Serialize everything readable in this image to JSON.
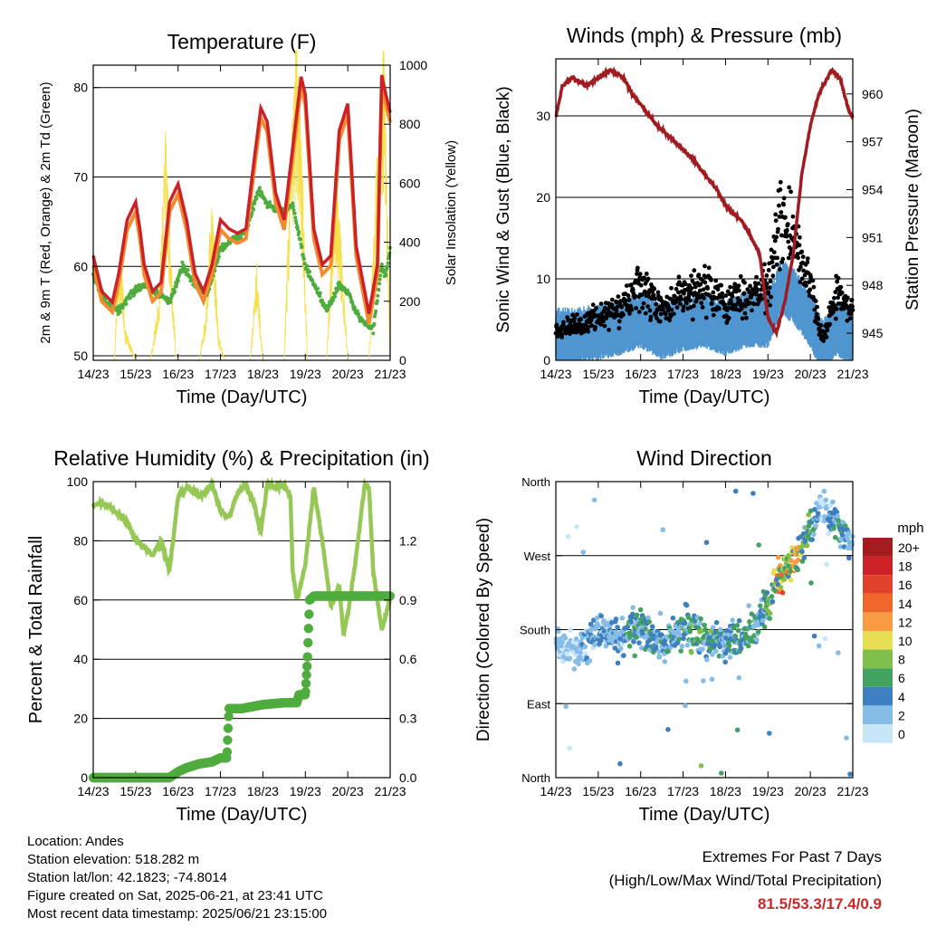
{
  "days": [
    "14/23",
    "15/23",
    "16/23",
    "17/23",
    "18/23",
    "19/23",
    "20/23",
    "21/23"
  ],
  "xlabel": "Time (Day/UTC)",
  "colors": {
    "temp_2m": "#cc2127",
    "temp_9m": "#f28b2f",
    "dewpoint": "#4fac3e",
    "solar": "#f5e14d",
    "wind": "#4f95d0",
    "gust": "#000000",
    "pressure": "#a01c20",
    "rh": "#95c854",
    "rain": "#4fac3e"
  },
  "chart_data": [
    {
      "id": "temperature",
      "type": "line",
      "title": "Temperature (F)",
      "xlabel": "Time (Day/UTC)",
      "ylabel": "2m & 9m T (Red, Orange) & 2m Td (Green)",
      "ylabel_right": "Solar Insolation (Yellow)",
      "ylim": [
        49.5,
        82.5
      ],
      "yticks": [
        50,
        60,
        70,
        80
      ],
      "ylim_right": [
        0,
        1000
      ],
      "yticks_right": [
        0,
        200,
        400,
        600,
        800,
        1000
      ],
      "series": [
        {
          "key": "temp",
          "x": [
            0,
            0.2,
            0.45,
            0.6,
            0.8,
            1.0,
            1.1,
            1.2,
            1.4,
            1.6,
            1.8,
            2.0,
            2.2,
            2.4,
            2.6,
            2.8,
            3.0,
            3.2,
            3.4,
            3.6,
            3.8,
            3.95,
            4.1,
            4.3,
            4.5,
            4.7,
            4.9,
            5.0,
            5.2,
            5.4,
            5.6,
            5.8,
            6.0,
            6.2,
            6.5,
            6.7,
            6.8,
            6.9,
            7.0
          ],
          "values": [
            61,
            57,
            55.8,
            59,
            65,
            67,
            64,
            60,
            57,
            58,
            67,
            69,
            65,
            59,
            57,
            60,
            65,
            64,
            63.5,
            64,
            72,
            77.5,
            76,
            68,
            65,
            73,
            81,
            79,
            64,
            60,
            61,
            75,
            78,
            62,
            54.5,
            60,
            81.2,
            79,
            77
          ]
        },
        {
          "key": "dew",
          "x": [
            0,
            0.3,
            0.6,
            0.9,
            1.2,
            1.5,
            1.8,
            2.1,
            2.4,
            2.7,
            3.0,
            3.3,
            3.6,
            3.9,
            4.1,
            4.4,
            4.7,
            5.0,
            5.3,
            5.5,
            5.8,
            6.0,
            6.3,
            6.6,
            6.8,
            6.9,
            7.0
          ],
          "values": [
            59,
            56,
            55,
            57,
            58,
            57,
            56,
            60,
            58,
            57,
            62,
            63,
            64,
            68.5,
            67,
            66,
            67,
            60,
            57,
            55,
            58,
            57,
            54,
            53,
            60,
            59,
            62
          ]
        },
        {
          "key": "solar",
          "x": [
            0,
            0.1,
            0.25,
            0.35,
            0.5,
            0.55,
            0.65,
            0.75,
            1,
            1.1,
            1.25,
            1.35,
            1.55,
            1.7,
            1.85,
            1.95,
            2.1,
            2.3,
            2.5,
            2.65,
            2.8,
            2.95,
            3.1,
            3.3,
            3.5,
            3.7,
            3.85,
            4.0,
            4.2,
            4.5,
            4.65,
            4.8,
            4.95,
            5.05,
            5.2,
            5.5,
            5.7,
            5.85,
            6.0,
            6.2,
            6.5,
            6.7,
            6.85,
            7.0
          ],
          "values": [
            0,
            0,
            0,
            0,
            0,
            180,
            350,
            100,
            0,
            0,
            0,
            0,
            200,
            700,
            300,
            0,
            0,
            0,
            0,
            150,
            520,
            80,
            0,
            0,
            0,
            0,
            300,
            0,
            0,
            0,
            650,
            1000,
            500,
            0,
            0,
            0,
            600,
            350,
            0,
            0,
            0,
            700,
            1050,
            0
          ]
        }
      ]
    },
    {
      "id": "winds",
      "type": "scatter",
      "title": "Winds (mph) & Pressure (mb)",
      "xlabel": "Time (Day/UTC)",
      "ylabel": "Sonic Wind & Gust (Blue, Black)",
      "ylabel_right": "Station Pressure (Maroon)",
      "ylim": [
        0,
        37
      ],
      "yticks": [
        0,
        10,
        20,
        30
      ],
      "ylim_right": [
        943.3,
        962.2
      ],
      "yticks_right": [
        945,
        948,
        951,
        954,
        957,
        960
      ],
      "series": [
        {
          "key": "pressure",
          "x": [
            0,
            0.15,
            0.4,
            0.7,
            1.0,
            1.3,
            1.6,
            1.8,
            2.1,
            2.4,
            2.8,
            3.2,
            3.5,
            3.8,
            4.0,
            4.2,
            4.4,
            4.6,
            4.8,
            5.0,
            5.2,
            5.4,
            5.6,
            5.8,
            6.0,
            6.2,
            6.5,
            6.7,
            6.9,
            7.0
          ],
          "values": [
            958.5,
            960.5,
            961,
            960.5,
            961,
            961.5,
            961,
            960,
            959,
            958,
            957,
            956,
            955,
            954,
            953,
            952.5,
            952,
            951,
            950,
            946,
            945,
            947,
            950,
            955,
            958,
            960,
            961.5,
            961,
            959,
            958.5
          ]
        },
        {
          "key": "wind_mean",
          "x": [
            0,
            0.5,
            1.0,
            1.5,
            2.0,
            2.5,
            3.0,
            3.5,
            4.0,
            4.5,
            5.0,
            5.3,
            5.6,
            6.0,
            6.3,
            6.6,
            7.0
          ],
          "values": [
            3,
            3,
            3.5,
            4,
            5,
            3.5,
            4.5,
            5,
            4,
            5,
            5,
            9,
            8,
            5,
            1.5,
            4,
            3
          ]
        },
        {
          "key": "gust_mean",
          "x": [
            0,
            0.5,
            1.0,
            1.5,
            2.0,
            2.5,
            3.0,
            3.5,
            4.0,
            4.5,
            5.0,
            5.3,
            5.6,
            6.0,
            6.3,
            6.6,
            7.0
          ],
          "values": [
            4,
            4,
            5.5,
            6,
            9,
            6,
            8,
            9,
            7,
            8,
            9,
            17,
            15,
            9,
            2.5,
            8,
            6
          ]
        }
      ]
    },
    {
      "id": "humidity",
      "type": "line",
      "title": "Relative Humidity (%) & Precipitation (in)",
      "xlabel": "Time (Day/UTC)",
      "ylabel": "Percent & Total Rainfall",
      "ylim": [
        0,
        100
      ],
      "yticks": [
        0,
        20,
        40,
        60,
        80,
        100
      ],
      "ylim_right": [
        0,
        1.5
      ],
      "yticks_right": [
        0.0,
        0.3,
        0.6,
        0.9,
        1.2
      ],
      "yticklabels_right": [
        "0.0",
        "0.3",
        "0.6",
        "0.9",
        "1.2"
      ],
      "series": [
        {
          "key": "rh",
          "x": [
            0,
            0.2,
            0.5,
            0.8,
            1.0,
            1.2,
            1.4,
            1.6,
            1.8,
            2.0,
            2.2,
            2.5,
            2.8,
            3.0,
            3.2,
            3.4,
            3.6,
            3.8,
            3.95,
            4.1,
            4.3,
            4.5,
            4.65,
            4.7,
            4.8,
            5.0,
            5.2,
            5.4,
            5.6,
            5.8,
            5.9,
            6.0,
            6.2,
            6.4,
            6.5,
            6.6,
            6.8,
            6.9,
            7.0
          ],
          "values": [
            92,
            93,
            90,
            86,
            80,
            78,
            75,
            80,
            70,
            95,
            98,
            95,
            99,
            90,
            88,
            96,
            99,
            92,
            83,
            99,
            98,
            99,
            95,
            70,
            60,
            72,
            98,
            80,
            58,
            65,
            48,
            55,
            75,
            99,
            98,
            70,
            50,
            55,
            60
          ]
        },
        {
          "key": "rain",
          "x": [
            0,
            1.8,
            2.0,
            2.2,
            2.5,
            2.8,
            3.0,
            3.15,
            3.2,
            3.5,
            4.0,
            4.5,
            4.8,
            4.85,
            5.0,
            5.05,
            5.1,
            5.2,
            5.5,
            6.0,
            7.0
          ],
          "values": [
            0,
            0,
            0.03,
            0.05,
            0.07,
            0.08,
            0.1,
            0.1,
            0.35,
            0.35,
            0.37,
            0.38,
            0.38,
            0.42,
            0.42,
            0.6,
            0.9,
            0.92,
            0.92,
            0.92,
            0.92
          ]
        }
      ]
    },
    {
      "id": "direction",
      "type": "scatter",
      "title": "Wind Direction",
      "xlabel": "Time (Day/UTC)",
      "ylabel": "Direction (Colored By Speed)",
      "yticks": [
        0,
        90,
        180,
        270,
        360
      ],
      "yticklabels": [
        "North",
        "East",
        "South",
        "West",
        "North"
      ],
      "legend_title": "mph",
      "legend_labels": [
        "20+",
        "18",
        "16",
        "14",
        "12",
        "10",
        "8",
        "6",
        "4",
        "2",
        "0"
      ],
      "legend_colors": [
        "#a41c1f",
        "#cc2127",
        "#e0412b",
        "#f0672d",
        "#f89b43",
        "#e8de52",
        "#7fbf4c",
        "#44a260",
        "#3d7fbf",
        "#86bde6",
        "#c7e6f8"
      ],
      "series": [
        {
          "key": "direction",
          "x": [
            0,
            0.5,
            1.0,
            1.5,
            2.0,
            2.5,
            3.0,
            3.5,
            4.0,
            4.5,
            5.0,
            5.3,
            5.6,
            6.0,
            6.3,
            6.6,
            7.0
          ],
          "values": [
            160,
            150,
            180,
            170,
            185,
            160,
            180,
            170,
            165,
            170,
            210,
            250,
            260,
            300,
            330,
            310,
            280
          ]
        }
      ]
    }
  ],
  "info": {
    "location": "Location: Andes",
    "elevation": "Station elevation: 518.282 m",
    "latlon": "Station lat/lon: 42.1823; -74.8014",
    "created": "Figure created on Sat, 2025-06-21, at 23:41 UTC",
    "recent": "Most recent data timestamp: 2025/06/21 23:15:00"
  },
  "extremes": {
    "title": "Extremes For Past 7 Days",
    "subtitle": "(High/Low/Max Wind/Total Precipitation)",
    "values": "81.5/53.3/17.4/0.9"
  }
}
